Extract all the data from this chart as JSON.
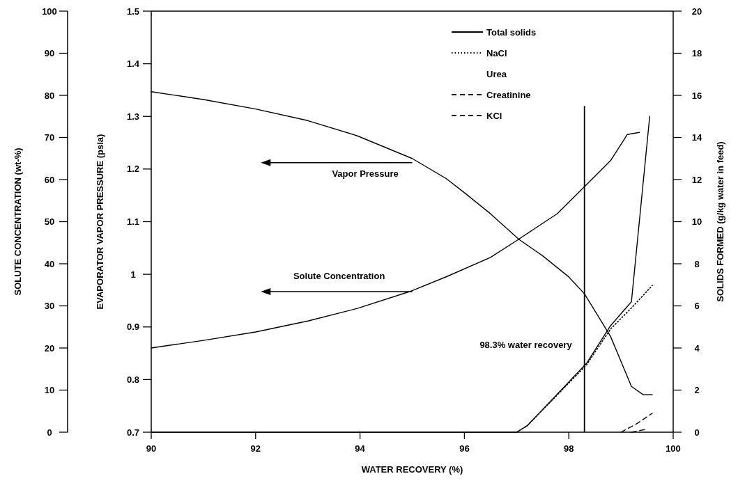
{
  "chart_data": {
    "type": "line",
    "xlabel": "WATER RECOVERY (%)",
    "ylabel": "SOLUTE CONCENTRATION (wt-%)",
    "y2label": "SOLIDS FORMED (g/kg water in feed)",
    "y3label": "EVAPORATOR VAPOR PRESSURE (psia)",
    "xlim": [
      90,
      100
    ],
    "xticks": [
      90,
      92,
      94,
      96,
      98,
      100
    ],
    "ylim": [
      0,
      100
    ],
    "yticks": [
      0,
      10,
      20,
      30,
      40,
      50,
      60,
      70,
      80,
      90,
      100
    ],
    "y2lim": [
      0,
      20
    ],
    "y2ticks": [
      0,
      2,
      4,
      6,
      8,
      10,
      12,
      14,
      16,
      18,
      20
    ],
    "y3lim": [
      0.7,
      1.5
    ],
    "y3ticks": [
      0.7,
      0.8,
      0.9,
      1,
      1.1,
      1.2,
      1.3,
      1.4,
      1.5
    ],
    "legend": "top right",
    "grid": false,
    "ref_lines": [
      {
        "axis": "x",
        "value": 98.3,
        "label": "98.3% water recovery",
        "color": "#000000"
      }
    ],
    "series": [
      {
        "name": "Vapor Pressure",
        "color": "#000000",
        "axis": "y3",
        "line_style": "solid",
        "x": [
          90,
          91,
          92,
          93,
          93.95,
          95,
          95.65,
          96,
          96.5,
          97.05,
          97.5,
          98,
          98.3,
          98.8,
          99.2,
          99.43,
          99.6
        ],
        "values": [
          1.347,
          1.332,
          1.314,
          1.292,
          1.263,
          1.22,
          1.182,
          1.155,
          1.115,
          1.066,
          1.035,
          0.995,
          0.963,
          0.882,
          0.787,
          0.771,
          0.771
        ]
      },
      {
        "name": "Solute Concentration",
        "color": "#000000",
        "axis": "y",
        "line_style": "solid",
        "x": [
          90,
          91,
          92,
          93,
          93.95,
          95,
          95.65,
          96.5,
          97,
          97.78,
          98.3,
          98.8,
          99.12,
          99.35
        ],
        "values": [
          20,
          21.8,
          23.8,
          26.4,
          29.4,
          33.6,
          36.9,
          41.5,
          45.5,
          51.9,
          58.3,
          64.5,
          70.7,
          71.2
        ]
      },
      {
        "name": "Total solids",
        "color": "#000000",
        "axis": "y2",
        "line_style": "solid",
        "x": [
          90,
          97,
          97.2,
          98.34,
          98.8,
          99.16,
          99.2,
          99.55
        ],
        "values": [
          0,
          0,
          0.3,
          3.27,
          5.06,
          6.08,
          6.2,
          15
        ]
      },
      {
        "name": "NaCl",
        "color": "#000000",
        "axis": "y2",
        "line_style": "dotted",
        "x": [
          97,
          97.2,
          98.34,
          98.8,
          99.2,
          99.6
        ],
        "values": [
          0,
          0.3,
          3.2,
          4.9,
          5.9,
          6.97
        ]
      },
      {
        "name": "Urea",
        "axis": "y2"
      },
      {
        "name": "Creatinine",
        "color": "#000000",
        "axis": "y2",
        "line_style": "dashed",
        "x": [
          99,
          99.3,
          99.6
        ],
        "values": [
          0,
          0.4,
          0.9
        ]
      },
      {
        "name": "KCl",
        "color": "#000000",
        "axis": "y2",
        "line_style": "dashed",
        "x": [
          99.2,
          99.5
        ],
        "values": [
          0,
          0.15
        ]
      }
    ]
  }
}
